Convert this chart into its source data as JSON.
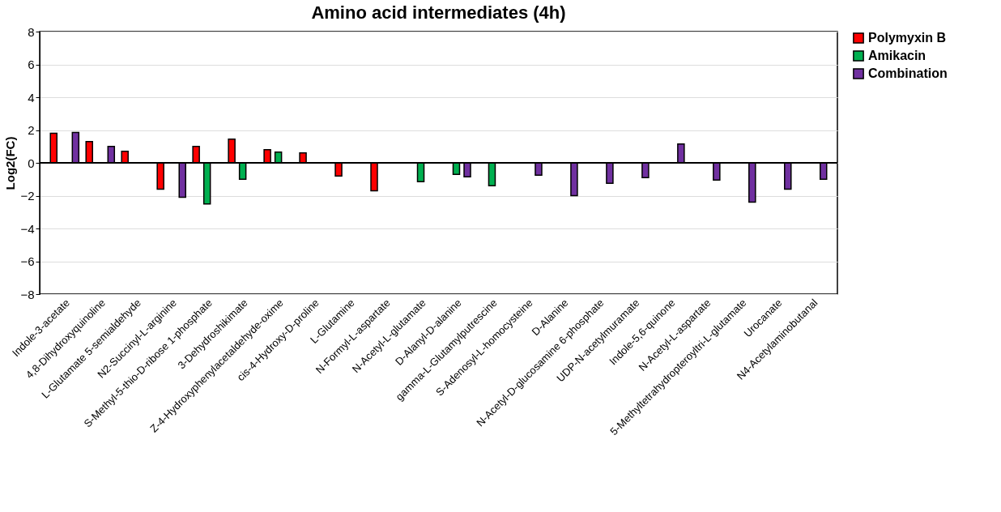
{
  "chart_data": {
    "type": "bar",
    "title": "Amino acid intermediates (4h)",
    "ylabel": "Log2(FC)",
    "categories": [
      "Indole-3-acetate",
      "4,8-Dihydroxyquinoline",
      "L-Glutamate 5-semialdehyde",
      "N2-Succinyl-L-arginine",
      "S-Methyl-5-thio-D-ribose 1-phosphate",
      "3-Dehydroshikimate",
      "Z-4-Hydroxyphenylacetaldehyde-oxime",
      "cis-4-Hydroxy-D-proline",
      "L-Glutamine",
      "N-Formyl-L-aspartate",
      "N-Acetyl-L-glutamate",
      "D-Alanyl-D-alanine",
      "gamma-L-Glutamylputrescine",
      "S-Adenosyl-L-homocysteine",
      "D-Alanine",
      "N-Acetyl-D-glucosamine 6-phosphate",
      "UDP-N-acetylmuramate",
      "Indole-5,6-quinone",
      "N-Acetyl-L-aspartate",
      "5-Methyltetrahydropteroyltri-L-glutamate",
      "Urocanate",
      "N4-Acetylaminobutanal"
    ],
    "series": [
      {
        "name": "Polymyxin B",
        "color": "#ff0000",
        "values": [
          1.8,
          1.3,
          0.7,
          -1.6,
          1.0,
          1.45,
          0.8,
          0.6,
          -0.8,
          -1.7,
          null,
          null,
          null,
          null,
          null,
          null,
          null,
          null,
          null,
          null,
          null,
          null
        ]
      },
      {
        "name": "Amikacin",
        "color": "#00b050",
        "values": [
          null,
          null,
          null,
          null,
          -2.5,
          -1.0,
          0.65,
          null,
          null,
          null,
          -1.15,
          -0.7,
          -1.4,
          null,
          null,
          null,
          null,
          null,
          null,
          null,
          null,
          null
        ]
      },
      {
        "name": "Combination",
        "color": "#7030a0",
        "values": [
          1.85,
          1.0,
          null,
          -2.1,
          null,
          null,
          null,
          null,
          null,
          null,
          null,
          -0.85,
          null,
          -0.75,
          -2.0,
          -1.25,
          -0.9,
          1.15,
          -1.05,
          -2.4,
          -1.6,
          -1.0
        ]
      }
    ],
    "ylim": [
      -8,
      8
    ],
    "yticks": [
      -8,
      -6,
      -4,
      -2,
      0,
      2,
      4,
      6,
      8
    ],
    "grid": "y",
    "legend": "right"
  }
}
